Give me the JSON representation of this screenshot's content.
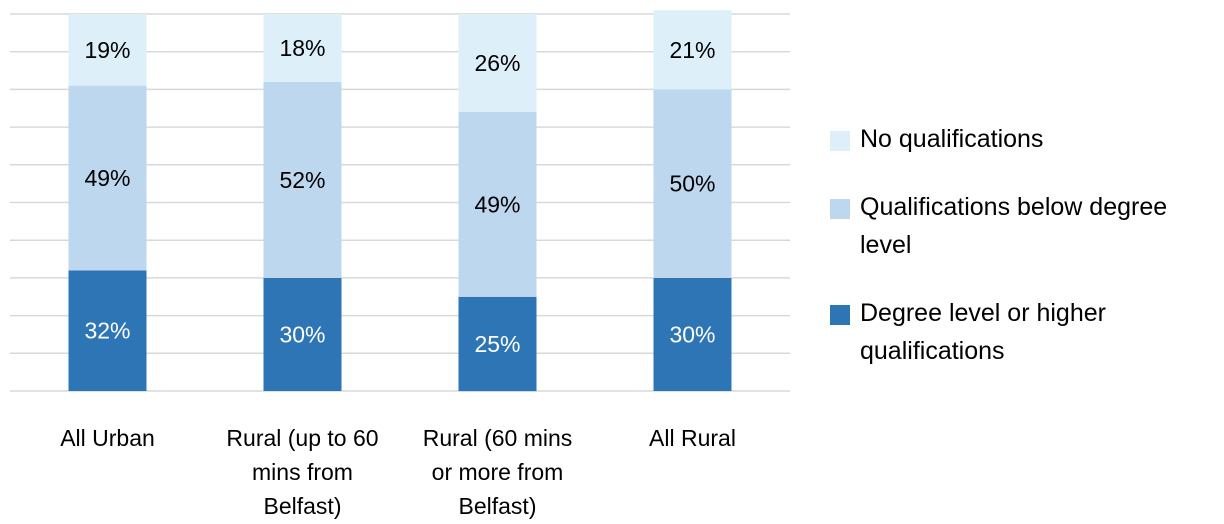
{
  "chart_data": {
    "type": "bar",
    "stacked": true,
    "orientation": "vertical",
    "categories": [
      [
        "All Urban"
      ],
      [
        "Rural (up to 60",
        "mins from",
        "Belfast)"
      ],
      [
        "Rural (60 mins",
        "or more from",
        "Belfast)"
      ],
      [
        "All Rural"
      ]
    ],
    "series": [
      {
        "name": "Degree level or higher qualifications",
        "legend_lines": [
          "Degree level or higher",
          "qualifications"
        ],
        "color": "#2e75b6",
        "label_color": "#ffffff",
        "values": [
          32,
          30,
          25,
          30
        ]
      },
      {
        "name": "Qualifications below degree level",
        "legend_lines": [
          "Qualifications below degree",
          "level"
        ],
        "color": "#bdd7ee",
        "label_color": "#000000",
        "values": [
          49,
          52,
          49,
          50
        ]
      },
      {
        "name": "No qualifications",
        "legend_lines": [
          "No qualifications"
        ],
        "color": "#ddf0fa",
        "label_color": "#000000",
        "values": [
          19,
          18,
          26,
          21
        ]
      }
    ],
    "value_suffix": "%",
    "ylim": [
      0,
      100
    ],
    "grid": true,
    "gridline_count": 10,
    "gridline_color": "#d9d9d9",
    "legend_position": "right",
    "legend_order": [
      "No qualifications",
      "Qualifications below degree level",
      "Degree level or higher qualifications"
    ]
  }
}
